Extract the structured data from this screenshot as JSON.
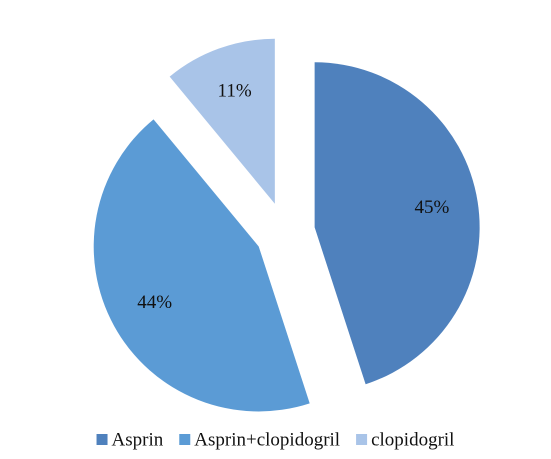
{
  "chart_data": {
    "type": "pie",
    "categories": [
      "Asprin",
      "Asprin+clopidogril",
      "clopidogril"
    ],
    "values": [
      45,
      44,
      11
    ],
    "value_labels": [
      "45%",
      "44%",
      "11%"
    ],
    "colors": [
      "#4f81bd",
      "#5b9bd5",
      "#a9c4e8"
    ],
    "legend": "bottom"
  }
}
